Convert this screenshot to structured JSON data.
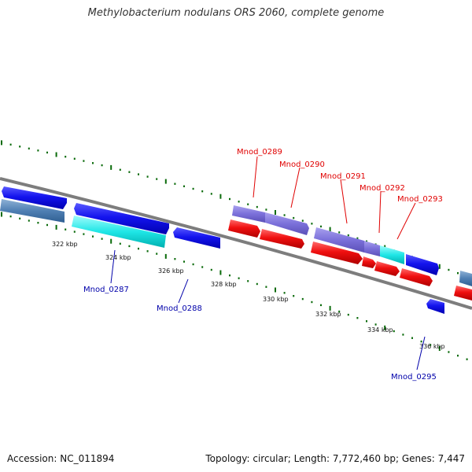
{
  "title": "Methylobacterium nodulans ORS 2060, complete genome",
  "footer": {
    "accession": "Accession: NC_011894",
    "topology": "Topology: circular; Length: 7,772,460 bp; Genes: 7,447"
  },
  "colors": {
    "backbone": "#8a8a8a",
    "tick": "#0a6a0a",
    "label_red": "#e00000",
    "label_blue": "#0000aa"
  },
  "scale_labels": [
    "322 kbp",
    "324 kbp",
    "326 kbp",
    "328 kbp",
    "330 kbp",
    "332 kbp",
    "334 kbp",
    "336 kbp"
  ],
  "gene_labels": [
    {
      "text": "Mnod_0289",
      "color": "red"
    },
    {
      "text": "Mnod_0290",
      "color": "red"
    },
    {
      "text": "Mnod_0291",
      "color": "red"
    },
    {
      "text": "Mnod_0292",
      "color": "red"
    },
    {
      "text": "Mnod_0293",
      "color": "red"
    },
    {
      "text": "Mnod_0287",
      "color": "blue"
    },
    {
      "text": "Mnod_0288",
      "color": "blue"
    },
    {
      "text": "Mnod_0295",
      "color": "blue"
    }
  ]
}
